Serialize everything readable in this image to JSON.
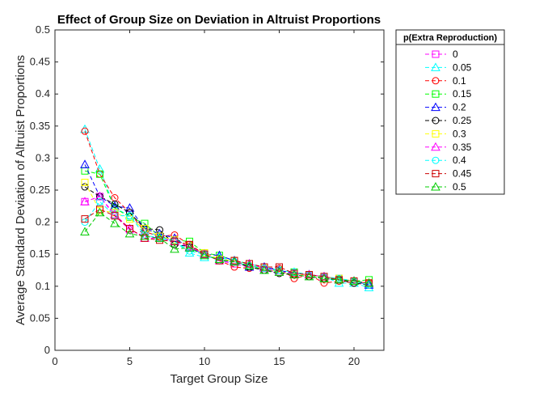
{
  "chart_data": {
    "type": "line",
    "title": "Effect of Group Size on Deviation in Altruist Proportions",
    "xlabel": "Target Group Size",
    "ylabel": "Average Standard Deviation of Altruist Proportions",
    "xlim": [
      0,
      22
    ],
    "ylim": [
      0,
      0.5
    ],
    "x_ticks": [
      0,
      5,
      10,
      15,
      20
    ],
    "y_ticks": [
      0,
      0.05,
      0.1,
      0.15,
      0.2,
      0.25,
      0.3,
      0.35,
      0.4,
      0.45,
      0.5
    ],
    "x_tick_labels": [
      "0",
      "5",
      "10",
      "15",
      "20"
    ],
    "y_tick_labels": [
      "0",
      "0.05",
      "0.1",
      "0.15",
      "0.2",
      "0.25",
      "0.3",
      "0.35",
      "0.4",
      "0.45",
      "0.5"
    ],
    "grid": false,
    "legend": {
      "title": "p(Extra Reproduction)",
      "placement": "outside-right-top"
    },
    "x": [
      2,
      3,
      4,
      5,
      6,
      7,
      8,
      9,
      10,
      11,
      12,
      13,
      14,
      15,
      16,
      17,
      18,
      19,
      20,
      21
    ],
    "series": [
      {
        "name": "0",
        "color": "#FF00FF",
        "marker": "square",
        "values": [
          0.232,
          0.24,
          0.21,
          0.188,
          0.178,
          0.175,
          0.172,
          0.16,
          0.15,
          0.14,
          0.135,
          0.13,
          0.125,
          0.122,
          0.12,
          0.118,
          0.115,
          0.112,
          0.108,
          0.105
        ]
      },
      {
        "name": "0.05",
        "color": "#00FFFF",
        "marker": "triangle",
        "values": [
          0.345,
          0.283,
          0.222,
          0.21,
          0.185,
          0.178,
          0.17,
          0.152,
          0.145,
          0.145,
          0.14,
          0.135,
          0.13,
          0.125,
          0.122,
          0.118,
          0.115,
          0.105,
          0.105,
          0.098
        ]
      },
      {
        "name": "0.1",
        "color": "#FF0000",
        "marker": "circle",
        "values": [
          0.342,
          0.275,
          0.238,
          0.215,
          0.185,
          0.178,
          0.18,
          0.165,
          0.15,
          0.14,
          0.13,
          0.128,
          0.128,
          0.128,
          0.112,
          0.118,
          0.105,
          0.108,
          0.105,
          0.105
        ]
      },
      {
        "name": "0.15",
        "color": "#00FF00",
        "marker": "square",
        "values": [
          0.28,
          0.275,
          0.222,
          0.208,
          0.198,
          0.178,
          0.172,
          0.17,
          0.152,
          0.148,
          0.14,
          0.135,
          0.125,
          0.125,
          0.122,
          0.118,
          0.112,
          0.112,
          0.108,
          0.11
        ]
      },
      {
        "name": "0.2",
        "color": "#0000FF",
        "marker": "triangle",
        "values": [
          0.29,
          0.24,
          0.225,
          0.222,
          0.19,
          0.182,
          0.175,
          0.16,
          0.15,
          0.148,
          0.14,
          0.13,
          0.13,
          0.125,
          0.12,
          0.118,
          0.115,
          0.11,
          0.108,
          0.102
        ]
      },
      {
        "name": "0.25",
        "color": "#000000",
        "marker": "circle",
        "values": [
          0.255,
          0.24,
          0.228,
          0.215,
          0.19,
          0.188,
          0.165,
          0.162,
          0.15,
          0.14,
          0.138,
          0.13,
          0.125,
          0.12,
          0.118,
          0.115,
          0.112,
          0.11,
          0.105,
          0.102
        ]
      },
      {
        "name": "0.3",
        "color": "#FFFF00",
        "marker": "square",
        "values": [
          0.262,
          0.218,
          0.215,
          0.205,
          0.19,
          0.178,
          0.172,
          0.162,
          0.152,
          0.142,
          0.14,
          0.132,
          0.128,
          0.122,
          0.118,
          0.118,
          0.115,
          0.112,
          0.108,
          0.105
        ]
      },
      {
        "name": "0.35",
        "color": "#FF00FF",
        "marker": "triangle",
        "values": [
          0.232,
          0.24,
          0.212,
          0.19,
          0.175,
          0.175,
          0.17,
          0.162,
          0.15,
          0.14,
          0.138,
          0.135,
          0.128,
          0.122,
          0.12,
          0.118,
          0.115,
          0.11,
          0.108,
          0.105
        ]
      },
      {
        "name": "0.4",
        "color": "#00FFFF",
        "marker": "circle",
        "values": [
          0.2,
          0.232,
          0.21,
          0.21,
          0.18,
          0.175,
          0.17,
          0.155,
          0.15,
          0.14,
          0.138,
          0.132,
          0.128,
          0.125,
          0.122,
          0.118,
          0.115,
          0.112,
          0.108,
          0.102
        ]
      },
      {
        "name": "0.45",
        "color": "#CC0000",
        "marker": "square",
        "values": [
          0.205,
          0.22,
          0.21,
          0.19,
          0.175,
          0.172,
          0.17,
          0.165,
          0.15,
          0.14,
          0.14,
          0.135,
          0.13,
          0.13,
          0.12,
          0.118,
          0.115,
          0.11,
          0.108,
          0.105
        ]
      },
      {
        "name": "0.5",
        "color": "#00CC00",
        "marker": "triangle",
        "values": [
          0.185,
          0.215,
          0.198,
          0.182,
          0.178,
          0.175,
          0.158,
          0.16,
          0.148,
          0.142,
          0.138,
          0.132,
          0.125,
          0.122,
          0.118,
          0.115,
          0.112,
          0.11,
          0.108,
          0.105
        ]
      }
    ]
  }
}
